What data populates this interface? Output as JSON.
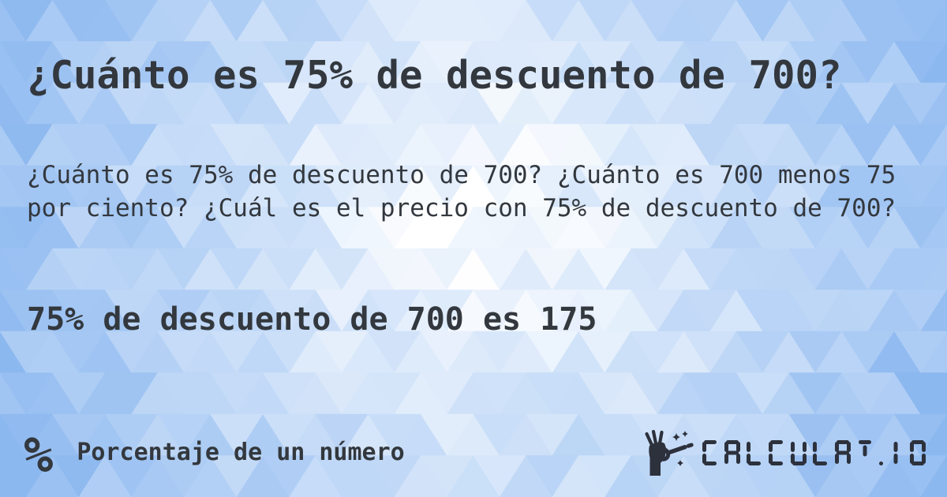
{
  "card": {
    "title": "¿Cuánto es 75% de descuento de 700?",
    "question": "¿Cuánto es 75% de descuento de 700? ¿Cuánto es 700 menos 75 por ciento? ¿Cuál es el precio con 75% de descuento de 700?",
    "answer": "75% de descuento de 700 es 175"
  },
  "footer": {
    "category": {
      "icon": "percent-icon",
      "symbol": "%",
      "label": "Porcentaje de un número"
    },
    "logo": {
      "icon": "hand-magic-wand-icon",
      "text": "CALCULAT.IO"
    }
  },
  "colors": {
    "text": "#33383e",
    "logo": "#2c313c",
    "background_blue": "#8cb8f0",
    "background_white": "#ffffff"
  }
}
